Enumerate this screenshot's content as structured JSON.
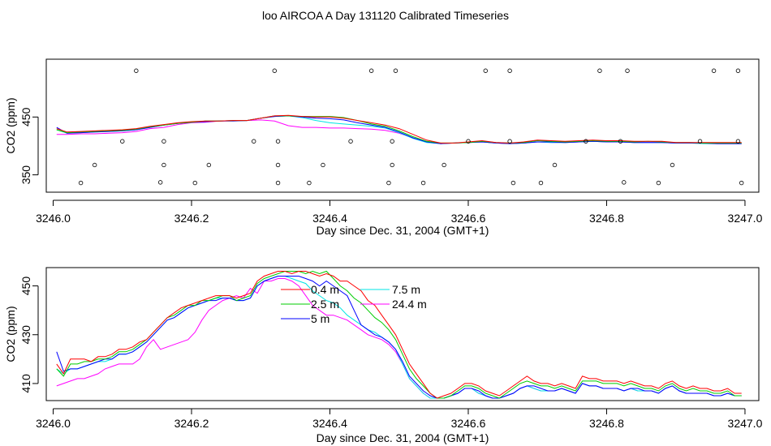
{
  "title": "loo AIRCOA A  Day 131120  Calibrated Timeseries",
  "colors": {
    "c0_4": "#ff0000",
    "c2_5": "#00cc00",
    "c5": "#0000ff",
    "c7_5": "#00e5e5",
    "c24_4": "#ff00ff",
    "ink": "#000000"
  },
  "chart_data": [
    {
      "type": "line",
      "title": "loo AIRCOA A  Day 131120  Calibrated Timeseries",
      "xlabel": "Day since Dec. 31, 2004 (GMT+1)",
      "ylabel": "CO2 (ppm)",
      "xlim": [
        3245.99,
        3247.02
      ],
      "ylim": [
        320,
        550
      ],
      "xticks": [
        "3246.0",
        "3246.2",
        "3246.4",
        "3246.6",
        "3246.8",
        "3247.0"
      ],
      "yticks": [
        "350",
        "450"
      ],
      "ytick_values": [
        350,
        450
      ],
      "grid": false,
      "legend": "none",
      "x": [
        3246.005,
        3246.02,
        3246.04,
        3246.06,
        3246.08,
        3246.1,
        3246.12,
        3246.14,
        3246.16,
        3246.18,
        3246.2,
        3246.22,
        3246.24,
        3246.26,
        3246.28,
        3246.3,
        3246.32,
        3246.34,
        3246.36,
        3246.38,
        3246.4,
        3246.42,
        3246.44,
        3246.46,
        3246.48,
        3246.5,
        3246.52,
        3246.54,
        3246.56,
        3246.58,
        3246.6,
        3246.62,
        3246.64,
        3246.66,
        3246.68,
        3246.7,
        3246.72,
        3246.74,
        3246.76,
        3246.78,
        3246.8,
        3246.82,
        3246.84,
        3246.86,
        3246.88,
        3246.9,
        3246.92,
        3246.94,
        3246.96,
        3246.98,
        3246.995
      ],
      "series": [
        {
          "name": "0.4 m",
          "color": "#ff0000",
          "values": [
            430,
            424,
            425,
            426,
            427,
            428,
            430,
            434,
            437,
            440,
            442,
            443,
            443,
            444,
            444,
            448,
            452,
            453,
            451,
            450,
            450,
            448,
            444,
            440,
            436,
            430,
            420,
            410,
            405,
            405,
            407,
            409,
            406,
            405,
            407,
            410,
            409,
            408,
            409,
            410,
            409,
            409,
            408,
            408,
            408,
            406,
            406,
            406,
            406,
            406,
            406
          ]
        },
        {
          "name": "2.5 m",
          "color": "#00cc00",
          "values": [
            428,
            423,
            424,
            425,
            426,
            427,
            429,
            433,
            436,
            439,
            441,
            443,
            443,
            444,
            444,
            448,
            452,
            452,
            451,
            451,
            451,
            449,
            444,
            438,
            434,
            426,
            416,
            408,
            405,
            405,
            406,
            408,
            406,
            405,
            406,
            409,
            408,
            407,
            408,
            409,
            408,
            408,
            407,
            408,
            407,
            406,
            406,
            405,
            405,
            405,
            405
          ]
        },
        {
          "name": "5 m",
          "color": "#0000ff",
          "values": [
            432,
            422,
            423,
            424,
            425,
            426,
            428,
            432,
            436,
            439,
            441,
            442,
            443,
            443,
            444,
            448,
            451,
            452,
            450,
            448,
            447,
            445,
            440,
            436,
            432,
            424,
            414,
            407,
            404,
            405,
            406,
            407,
            405,
            404,
            405,
            407,
            407,
            406,
            407,
            408,
            407,
            407,
            406,
            406,
            406,
            405,
            405,
            405,
            404,
            404,
            404
          ]
        },
        {
          "name": "7.5 m",
          "color": "#00e5e5",
          "values": [
            428,
            422,
            423,
            424,
            425,
            426,
            428,
            432,
            436,
            439,
            441,
            443,
            443,
            444,
            444,
            448,
            451,
            452,
            449,
            444,
            440,
            438,
            436,
            434,
            431,
            423,
            413,
            406,
            404,
            405,
            406,
            407,
            405,
            404,
            405,
            407,
            406,
            406,
            407,
            408,
            407,
            407,
            406,
            406,
            406,
            405,
            405,
            404,
            404,
            404,
            404
          ]
        },
        {
          "name": "24.4 m",
          "color": "#ff00ff",
          "values": [
            420,
            420,
            421,
            421,
            422,
            423,
            425,
            430,
            432,
            437,
            440,
            441,
            443,
            444,
            444,
            445,
            443,
            435,
            432,
            432,
            431,
            431,
            430,
            429,
            427,
            422,
            414,
            407,
            404,
            405,
            406,
            407,
            405,
            404,
            405,
            407,
            406,
            406,
            407,
            408,
            407,
            407,
            406,
            406,
            406,
            405,
            405,
            404,
            404,
            404,
            404
          ]
        }
      ],
      "markers": {
        "name": "points",
        "x": [
          3246.04,
          3246.06,
          3246.1,
          3246.12,
          3246.155,
          3246.16,
          3246.16,
          3246.205,
          3246.225,
          3246.29,
          3246.32,
          3246.325,
          3246.325,
          3246.325,
          3246.37,
          3246.39,
          3246.43,
          3246.46,
          3246.485,
          3246.49,
          3246.49,
          3246.495,
          3246.535,
          3246.565,
          3246.6,
          3246.625,
          3246.66,
          3246.66,
          3246.665,
          3246.705,
          3246.725,
          3246.77,
          3246.79,
          3246.82,
          3246.825,
          3246.83,
          3246.875,
          3246.895,
          3246.935,
          3246.955,
          3246.99,
          3246.99,
          3246.995
        ],
        "y": [
          336,
          367,
          408,
          530,
          337,
          367,
          408,
          336,
          367,
          408,
          530,
          408,
          367,
          336,
          336,
          367,
          408,
          530,
          336,
          367,
          408,
          530,
          336,
          367,
          408,
          530,
          530,
          408,
          336,
          336,
          367,
          408,
          530,
          408,
          337,
          530,
          336,
          367,
          408,
          530,
          530,
          408,
          336
        ]
      }
    },
    {
      "type": "line",
      "xlabel": "Day since Dec. 31, 2004 (GMT+1)",
      "ylabel": "CO2 (ppm)",
      "xlim": [
        3245.99,
        3247.02
      ],
      "ylim": [
        403,
        457.5
      ],
      "xticks": [
        "3246.0",
        "3246.2",
        "3246.4",
        "3246.6",
        "3246.8",
        "3247.0"
      ],
      "yticks": [
        "410",
        "430",
        "450"
      ],
      "ytick_values": [
        410,
        430,
        450
      ],
      "grid": false,
      "legend": "inside-top-center",
      "x": [
        3246.005,
        3246.015,
        3246.025,
        3246.035,
        3246.045,
        3246.055,
        3246.065,
        3246.075,
        3246.085,
        3246.095,
        3246.105,
        3246.115,
        3246.125,
        3246.135,
        3246.145,
        3246.155,
        3246.165,
        3246.175,
        3246.185,
        3246.195,
        3246.205,
        3246.215,
        3246.225,
        3246.235,
        3246.245,
        3246.255,
        3246.265,
        3246.275,
        3246.285,
        3246.295,
        3246.305,
        3246.315,
        3246.325,
        3246.335,
        3246.345,
        3246.355,
        3246.365,
        3246.375,
        3246.385,
        3246.395,
        3246.405,
        3246.415,
        3246.425,
        3246.435,
        3246.445,
        3246.455,
        3246.465,
        3246.475,
        3246.485,
        3246.495,
        3246.505,
        3246.515,
        3246.525,
        3246.535,
        3246.545,
        3246.555,
        3246.565,
        3246.575,
        3246.585,
        3246.595,
        3246.605,
        3246.615,
        3246.625,
        3246.635,
        3246.645,
        3246.655,
        3246.665,
        3246.675,
        3246.685,
        3246.695,
        3246.705,
        3246.715,
        3246.725,
        3246.735,
        3246.745,
        3246.755,
        3246.765,
        3246.775,
        3246.785,
        3246.795,
        3246.805,
        3246.815,
        3246.825,
        3246.835,
        3246.845,
        3246.855,
        3246.865,
        3246.875,
        3246.885,
        3246.895,
        3246.905,
        3246.915,
        3246.925,
        3246.935,
        3246.945,
        3246.955,
        3246.965,
        3246.975,
        3246.985,
        3246.995
      ],
      "series": [
        {
          "name": "0.4 m",
          "color": "#ff0000",
          "values": [
            418,
            414,
            420,
            420,
            420,
            419,
            421,
            421,
            422,
            424,
            424,
            425,
            427,
            428,
            431,
            434,
            437,
            439,
            441,
            442,
            443,
            444,
            445,
            446,
            446,
            446,
            445,
            446,
            447,
            452,
            454,
            455,
            456,
            456,
            455,
            456,
            456,
            455,
            454,
            455,
            454,
            452,
            452,
            450,
            448,
            444,
            442,
            438,
            434,
            430,
            424,
            418,
            414,
            410,
            406,
            404,
            405,
            406,
            408,
            410,
            410,
            409,
            407,
            406,
            405,
            407,
            409,
            411,
            413,
            411,
            410,
            410,
            409,
            410,
            409,
            408,
            413,
            412,
            412,
            411,
            411,
            411,
            410,
            411,
            410,
            409,
            409,
            408,
            410,
            411,
            409,
            408,
            409,
            408,
            408,
            407,
            407,
            408,
            406,
            406
          ]
        },
        {
          "name": "2.5 m",
          "color": "#00cc00",
          "values": [
            416,
            413,
            418,
            418,
            419,
            419,
            420,
            420,
            421,
            423,
            423,
            424,
            426,
            428,
            431,
            434,
            437,
            438,
            440,
            442,
            442,
            444,
            444,
            445,
            446,
            446,
            444,
            445,
            446,
            451,
            453,
            454,
            455,
            456,
            456,
            456,
            455,
            456,
            455,
            456,
            453,
            450,
            448,
            445,
            443,
            440,
            437,
            435,
            432,
            428,
            422,
            416,
            412,
            409,
            406,
            404,
            404,
            405,
            407,
            409,
            409,
            408,
            406,
            405,
            404,
            406,
            408,
            410,
            411,
            410,
            409,
            409,
            408,
            409,
            408,
            407,
            411,
            411,
            411,
            410,
            410,
            410,
            409,
            410,
            409,
            408,
            408,
            407,
            409,
            410,
            408,
            407,
            408,
            407,
            407,
            406,
            406,
            407,
            405,
            405
          ]
        },
        {
          "name": "5 m",
          "color": "#0000ff",
          "values": [
            423,
            415,
            416,
            416,
            417,
            418,
            419,
            420,
            420,
            422,
            422,
            423,
            425,
            427,
            430,
            433,
            436,
            437,
            439,
            441,
            442,
            443,
            444,
            444,
            445,
            445,
            444,
            444,
            445,
            450,
            452,
            453,
            454,
            454,
            454,
            454,
            453,
            452,
            450,
            452,
            450,
            448,
            446,
            440,
            434,
            432,
            430,
            429,
            427,
            424,
            419,
            413,
            410,
            407,
            405,
            404,
            404,
            405,
            406,
            408,
            408,
            407,
            405,
            404,
            404,
            405,
            406,
            408,
            409,
            409,
            408,
            407,
            407,
            408,
            407,
            406,
            410,
            409,
            409,
            408,
            408,
            408,
            407,
            408,
            408,
            407,
            407,
            406,
            408,
            409,
            407,
            406,
            406,
            406,
            406,
            405,
            405,
            406,
            405,
            405
          ]
        },
        {
          "name": "7.5 m",
          "color": "#00e5e5",
          "values": [
            416,
            414,
            416,
            416,
            417,
            418,
            419,
            419,
            420,
            422,
            422,
            423,
            425,
            427,
            430,
            433,
            436,
            437,
            439,
            441,
            442,
            443,
            444,
            445,
            445,
            445,
            444,
            444,
            445,
            450,
            452,
            453,
            454,
            454,
            453,
            452,
            451,
            448,
            446,
            444,
            443,
            441,
            438,
            436,
            434,
            432,
            431,
            429,
            427,
            424,
            418,
            412,
            409,
            406,
            404,
            404,
            404,
            405,
            406,
            408,
            408,
            406,
            405,
            404,
            404,
            405,
            406,
            408,
            409,
            408,
            407,
            407,
            407,
            408,
            407,
            406,
            410,
            409,
            409,
            408,
            408,
            408,
            407,
            408,
            407,
            407,
            407,
            406,
            408,
            409,
            407,
            406,
            406,
            406,
            406,
            405,
            405,
            406,
            405,
            405
          ]
        },
        {
          "name": "24.4 m",
          "color": "#ff00ff",
          "values": [
            409,
            410,
            411,
            412,
            412,
            413,
            414,
            416,
            417,
            418,
            418,
            418,
            420,
            425,
            428,
            424,
            425,
            426,
            427,
            428,
            431,
            436,
            440,
            442,
            444,
            445,
            446,
            445,
            449,
            447,
            452,
            452,
            453,
            453,
            452,
            450,
            446,
            442,
            440,
            438,
            438,
            437,
            436,
            434,
            432,
            430,
            429,
            428,
            426,
            423,
            418,
            412,
            409,
            406,
            404,
            404,
            404,
            405,
            406,
            408,
            408,
            406,
            405,
            404,
            404,
            405,
            406,
            408,
            409,
            408,
            407,
            407,
            407,
            408,
            407,
            406,
            410,
            409,
            409,
            408,
            408,
            408,
            407,
            408,
            407,
            407,
            407,
            406,
            408,
            409,
            407,
            406,
            406,
            406,
            406,
            405,
            405,
            406,
            405,
            405
          ]
        }
      ]
    }
  ]
}
